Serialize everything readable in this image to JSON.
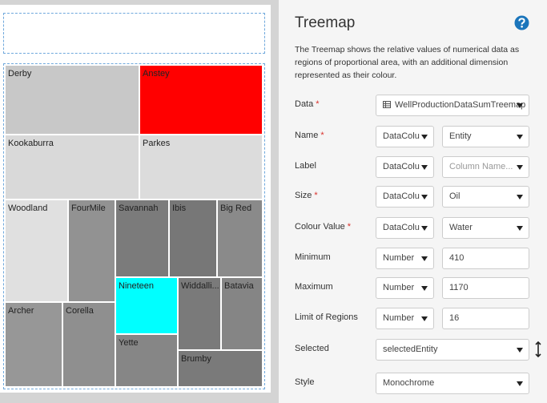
{
  "treemap": {
    "cells": [
      {
        "label": "Derby",
        "color": "#c8c8c8"
      },
      {
        "label": "Anstey",
        "color": "#ff0000"
      },
      {
        "label": "Kookaburra",
        "color": "#d9d9d9"
      },
      {
        "label": "Parkes",
        "color": "#dcdcdc"
      },
      {
        "label": "Woodland",
        "color": "#e0e0e0"
      },
      {
        "label": "FourMile",
        "color": "#929292"
      },
      {
        "label": "Savannah",
        "color": "#7b7b7b"
      },
      {
        "label": "Ibis",
        "color": "#777777"
      },
      {
        "label": "Big Red",
        "color": "#8a8a8a"
      },
      {
        "label": "Nineteen",
        "color": "#00ffff"
      },
      {
        "label": "Widdalli...",
        "color": "#7a7a7a"
      },
      {
        "label": "Batavia",
        "color": "#858585"
      },
      {
        "label": "Archer",
        "color": "#979797"
      },
      {
        "label": "Corella",
        "color": "#8f8f8f"
      },
      {
        "label": "Yette",
        "color": "#868686"
      },
      {
        "label": "Brumby",
        "color": "#7a7a7a"
      }
    ]
  },
  "settings_panel": {
    "title": "Treemap",
    "description": [
      "The Treemap shows the relative values of numerical data as",
      "regions of proportional area, with an additional dimension",
      "represented as their colour."
    ],
    "fields": [
      {
        "label": "Data",
        "required": "*",
        "value": "WellProductionDataSumTreemap"
      },
      {
        "label": "Name",
        "required": "*",
        "source": "DataColu",
        "value": "Entity"
      },
      {
        "label": "Label",
        "source": "DataColu",
        "placeholder": "Column Name..."
      },
      {
        "label": "Size",
        "required": "*",
        "source": "DataColu",
        "value": "Oil"
      },
      {
        "label": "Colour Value",
        "required": "*",
        "source": "DataColu",
        "value": "Water"
      },
      {
        "label": "Minimum",
        "source": "Number",
        "value": 410
      },
      {
        "label": "Maximum",
        "source": "Number",
        "value": 1170
      },
      {
        "label": "Limit of Regions",
        "source": "Number",
        "value": 16
      },
      {
        "label": "Selected",
        "value": "selectedEntity"
      },
      {
        "label": "Style",
        "value": "Monochrome"
      }
    ]
  }
}
